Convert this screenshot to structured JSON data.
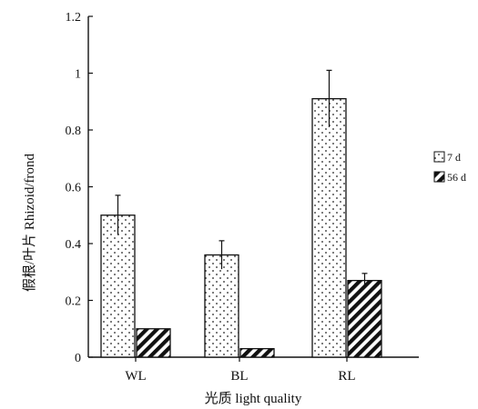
{
  "chart_data": {
    "type": "bar",
    "categories": [
      "WL",
      "BL",
      "RL"
    ],
    "series": [
      {
        "name": "7 d",
        "values": [
          0.5,
          0.36,
          0.91
        ],
        "errors": [
          0.07,
          0.05,
          0.1
        ],
        "pattern": "dots"
      },
      {
        "name": "56 d",
        "values": [
          0.1,
          0.03,
          0.27
        ],
        "errors": [
          0.005,
          0.005,
          0.025
        ],
        "pattern": "diagonal-stripes"
      }
    ],
    "xlabel": "光质  light quality",
    "ylabel": "假根/叶片  Rhizoid/frond",
    "ylim": [
      0,
      1.2
    ],
    "yticks": [
      0,
      0.2,
      0.4,
      0.6,
      0.8,
      1,
      1.2
    ],
    "ytick_labels": [
      "0",
      "0.2",
      "0.4",
      "0.6",
      "0.8",
      "1",
      "1.2"
    ],
    "legend_position": "right",
    "grid": false
  }
}
